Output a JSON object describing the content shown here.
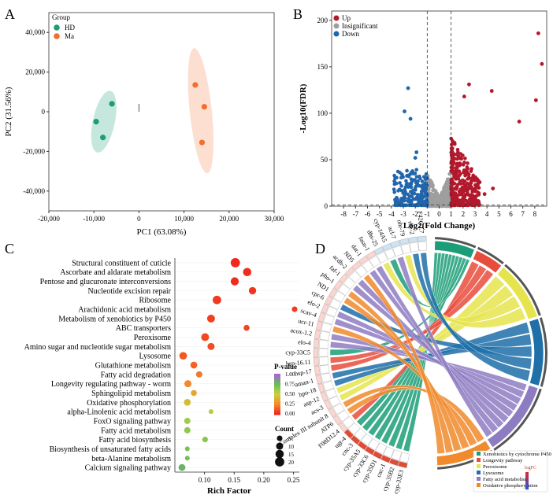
{
  "chart_data": [
    {
      "panel": "A",
      "type": "scatter",
      "xlabel": "PC1 (63.08%)",
      "ylabel": "PC2 (31.56%)",
      "xlim": [
        -20000,
        30000
      ],
      "ylim": [
        -50000,
        50000
      ],
      "xticks": [
        "-20,000",
        "-10,000",
        "0",
        "10,000",
        "20,000",
        "30,000"
      ],
      "yticks": [
        "40,000",
        "20,000",
        "0",
        "-20,000",
        "-40,000"
      ],
      "legend_title": "Group",
      "series": [
        {
          "name": "HD",
          "color": "#1b9e77",
          "points": [
            [
              -6000,
              4000
            ],
            [
              -9500,
              -5000
            ],
            [
              -8000,
              -13000
            ]
          ]
        },
        {
          "name": "Ma",
          "color": "#f46d2e",
          "points": [
            [
              12500,
              13500
            ],
            [
              14500,
              2500
            ],
            [
              14000,
              -15500
            ]
          ]
        }
      ]
    },
    {
      "panel": "B",
      "type": "scatter",
      "xlabel": "Log2(Fold  Change)",
      "ylabel": "-Log10(FDR)",
      "xlim": [
        -9,
        9
      ],
      "ylim": [
        0,
        210
      ],
      "xticks": [
        "-8",
        "-7",
        "-6",
        "-5",
        "-4",
        "-3",
        "-2",
        "-1",
        "0",
        "1",
        "2",
        "3",
        "4",
        "5",
        "6",
        "7",
        "8"
      ],
      "yticks": [
        "0",
        "50",
        "100",
        "150",
        "200"
      ],
      "legend": [
        "Up",
        "Insignificant",
        "Down"
      ],
      "colors": {
        "up": "#b2182b",
        "insig": "#9e9e9e",
        "down": "#2166ac"
      },
      "highlight_points_up": [
        [
          8.3,
          186
        ],
        [
          8.6,
          153
        ],
        [
          8.1,
          114
        ],
        [
          6.7,
          91
        ],
        [
          4.4,
          124
        ],
        [
          2.5,
          131
        ],
        [
          2.1,
          118
        ],
        [
          4.5,
          19
        ],
        [
          3.8,
          13
        ]
      ],
      "highlight_points_down": [
        [
          -2.6,
          127
        ],
        [
          -2.9,
          102
        ],
        [
          -2.4,
          94
        ],
        [
          -1.9,
          58
        ],
        [
          -2.0,
          52
        ]
      ]
    },
    {
      "panel": "C",
      "type": "scatter",
      "xlabel": "Rich Factor",
      "xlim": [
        0.05,
        0.26
      ],
      "xticks": [
        "0.10",
        "0.15",
        "0.20",
        "0.25"
      ],
      "color_legend_title": "P-value",
      "color_ticks": [
        "1.00",
        "0.75",
        "0.50",
        "0.25",
        "0.00"
      ],
      "size_legend_title": "Count",
      "size_ticks": [
        "5",
        "10",
        "15",
        "20"
      ],
      "terms": [
        {
          "name": "Structural constituent of cuticle",
          "rich": 0.152,
          "count": 20,
          "p": 0.0
        },
        {
          "name": "Ascorbate and aldarate metabolism",
          "rich": 0.172,
          "count": 15,
          "p": 0.01
        },
        {
          "name": "Pentose and glucuronate interconversions",
          "rich": 0.151,
          "count": 14,
          "p": 0.01
        },
        {
          "name": "Nucleotide excision repair",
          "rich": 0.181,
          "count": 11,
          "p": 0.03
        },
        {
          "name": "Ribosome",
          "rich": 0.121,
          "count": 16,
          "p": 0.04
        },
        {
          "name": "Arachidonic acid metabolism",
          "rich": 0.252,
          "count": 5,
          "p": 0.05
        },
        {
          "name": "Metabolism of xenobiotics by P450",
          "rich": 0.111,
          "count": 13,
          "p": 0.06
        },
        {
          "name": "ABC transporters",
          "rich": 0.171,
          "count": 6,
          "p": 0.07
        },
        {
          "name": "Peroxisome",
          "rich": 0.101,
          "count": 13,
          "p": 0.08
        },
        {
          "name": "Amino sugar and nucleotide sugar metabolism",
          "rich": 0.111,
          "count": 10,
          "p": 0.09
        },
        {
          "name": "Lysosome",
          "rich": 0.064,
          "count": 12,
          "p": 0.12
        },
        {
          "name": "Glutathione metabolism",
          "rich": 0.082,
          "count": 9,
          "p": 0.15
        },
        {
          "name": "Fatty acid degradation",
          "rich": 0.091,
          "count": 7,
          "p": 0.2
        },
        {
          "name": "Longevity regulating pathway - worm",
          "rich": 0.072,
          "count": 10,
          "p": 0.24
        },
        {
          "name": "Sphingolipid metabolism",
          "rich": 0.082,
          "count": 6,
          "p": 0.34
        },
        {
          "name": "Oxidative phosphorylation",
          "rich": 0.071,
          "count": 9,
          "p": 0.42
        },
        {
          "name": "alpha-Linolenic acid metabolism",
          "rich": 0.111,
          "count": 3,
          "p": 0.55
        },
        {
          "name": "FoxO signaling pathway",
          "rich": 0.071,
          "count": 7,
          "p": 0.6
        },
        {
          "name": "Fatty acid metabolism",
          "rich": 0.071,
          "count": 7,
          "p": 0.64
        },
        {
          "name": "Fatty acid biosynthesis",
          "rich": 0.101,
          "count": 5,
          "p": 0.66
        },
        {
          "name": "Biosynthesis of unsaturated fatty acids",
          "rich": 0.071,
          "count": 3,
          "p": 0.7
        },
        {
          "name": "beta-Alanine metabolism",
          "rich": 0.071,
          "count": 3,
          "p": 0.72
        },
        {
          "name": "Calcium signaling pathway",
          "rich": 0.062,
          "count": 9,
          "p": 0.78
        }
      ]
    },
    {
      "panel": "D",
      "type": "chord",
      "genes": [
        "cyp-33E3",
        "cyp-35B2",
        "cnc-1",
        "cyp-35D1",
        "cyp-33C6",
        "cyp-35A5",
        "cnc-3",
        "ugt-4",
        "F08D12.4",
        "ATP6",
        "Complex III subunit 8",
        "acs-3",
        "asp-12",
        "hpo-18",
        "aman-1",
        "hsp-17",
        "hsp-16.11",
        "cyp-33C5",
        "elo-4",
        "acox-1.2",
        "ucr-11",
        "scav-4",
        "elo-2",
        "cpr-6",
        "ND1",
        "pho-1",
        "faf-1",
        "acdh-2",
        "ND5",
        "dat-1",
        "fasn-1",
        "dhs-25",
        "cyp-14A5",
        "acl-7",
        "nhr-79",
        "rhe-2",
        "F42G2.7"
      ],
      "pathways": [
        {
          "name": "Xenobiotics by cytochrome P450",
          "color": "#1b9e77"
        },
        {
          "name": "Longevity pathway",
          "color": "#e74c3c"
        },
        {
          "name": "Peroxisome",
          "color": "#e6e44d"
        },
        {
          "name": "Lysosome",
          "color": "#1f6fa8"
        },
        {
          "name": "Fatty acid metabolism",
          "color": "#8e7cc3"
        },
        {
          "name": "Oxidative phosphorylation",
          "color": "#f08a2c"
        }
      ],
      "logfc_title": "logFC"
    }
  ]
}
